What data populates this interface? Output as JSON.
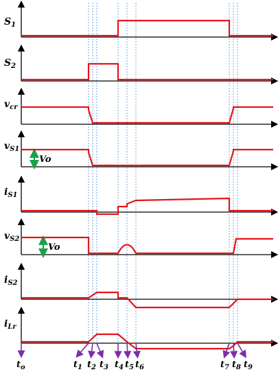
{
  "signals": [
    {
      "id": "s1",
      "label": "S",
      "sub": "1"
    },
    {
      "id": "s2",
      "label": "S",
      "sub": "2"
    },
    {
      "id": "vcr",
      "label": "v",
      "sub": "cr"
    },
    {
      "id": "vs1",
      "label": "v",
      "sub": "S1"
    },
    {
      "id": "is1",
      "label": "i",
      "sub": "S1"
    },
    {
      "id": "vs2",
      "label": "v",
      "sub": "S2"
    },
    {
      "id": "is2",
      "label": "i",
      "sub": "S2"
    },
    {
      "id": "ilr",
      "label": "i",
      "sub": "Lr"
    }
  ],
  "annotations": {
    "vo_1": "Vo",
    "vo_2": "Vo"
  },
  "time_markers": [
    {
      "label": "t",
      "sub": "o"
    },
    {
      "label": "t",
      "sub": "1"
    },
    {
      "label": "t",
      "sub": "2"
    },
    {
      "label": "t",
      "sub": "3"
    },
    {
      "label": "t",
      "sub": "4"
    },
    {
      "label": "t",
      "sub": "5"
    },
    {
      "label": "t",
      "sub": "6"
    },
    {
      "label": "t",
      "sub": "7"
    },
    {
      "label": "t",
      "sub": "8"
    },
    {
      "label": "t",
      "sub": "9"
    }
  ],
  "colors": {
    "waveform": "#e4141b",
    "axis": "#000000",
    "dashed": "#4a90d9",
    "marker_arrow": "#7a2fa8",
    "vo_arrow": "#1aa14a"
  }
}
